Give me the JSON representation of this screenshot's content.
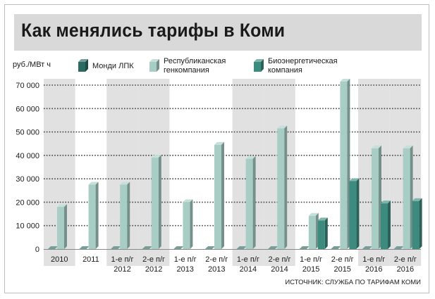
{
  "title": "Как менялись тарифы в Коми",
  "source": "ИСТОЧНИК: СЛУЖБА ПО ТАРИФАМ КОМИ",
  "colors": {
    "mondi": "#2c6b62",
    "rgk": "#a7cdc5",
    "bio": "#3d8b7e",
    "band": "#e1e1e1",
    "grid": "#444444"
  },
  "chart_data": {
    "type": "bar",
    "ylabel": "руб./МВт ч",
    "ylim": [
      0,
      70000
    ],
    "yticks": [
      0,
      10000,
      20000,
      30000,
      40000,
      50000,
      60000,
      70000
    ],
    "ytick_labels": [
      "0",
      "10 000",
      "20 000",
      "30 000",
      "40 000",
      "50 000",
      "60 000",
      "70 000"
    ],
    "categories": [
      [
        "2010"
      ],
      [
        "2011"
      ],
      [
        "1-е п/г",
        "2012"
      ],
      [
        "2-е п/г",
        "2012"
      ],
      [
        "1-е п/г",
        "2013"
      ],
      [
        "2-е п/г",
        "2013"
      ],
      [
        "1-е п/г",
        "2014"
      ],
      [
        "2-е п/г",
        "2014"
      ],
      [
        "1-е п/г",
        "2015"
      ],
      [
        "2-е п/г",
        "2015"
      ],
      [
        "1-е п/г",
        "2016"
      ],
      [
        "2-е п/г",
        "2016"
      ]
    ],
    "shaded_categories": [
      0,
      2,
      3,
      6,
      7,
      10,
      11
    ],
    "series": [
      {
        "name": "Монди ЛПК",
        "color_key": "mondi",
        "values": [
          0,
          0,
          0,
          0,
          0,
          0,
          0,
          0,
          0,
          0,
          0,
          0
        ]
      },
      {
        "name": "Республиканская генкомпания",
        "color_key": "rgk",
        "values": [
          18000,
          27500,
          27500,
          39000,
          20000,
          44500,
          38500,
          51500,
          14200,
          71500,
          43000,
          43000
        ]
      },
      {
        "name": "Биоэнергетическая компания",
        "color_key": "bio",
        "values": [
          null,
          null,
          null,
          null,
          null,
          null,
          null,
          null,
          12200,
          29000,
          19500,
          20500
        ]
      }
    ],
    "legend_position": "top",
    "grid": true
  }
}
